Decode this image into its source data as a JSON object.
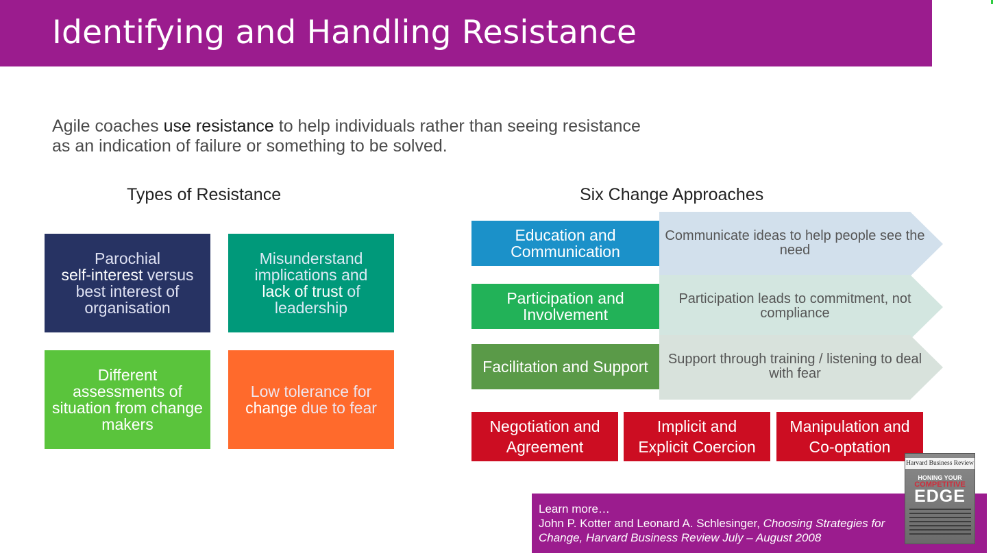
{
  "header": {
    "title": "Identifying and Handling Resistance"
  },
  "intro": {
    "part1": "Agile coaches ",
    "highlight": "use resistance",
    "part2": " to help individuals rather than seeing resistance as an indication of failure or something to be solved."
  },
  "types": {
    "heading": "Types of Resistance",
    "box1": {
      "a": "Parochial",
      "b": "self-interest",
      "c": " versus best interest of organisation"
    },
    "box2": {
      "a": "Misunderstand",
      "b": "implications and",
      "c": "lack of trust",
      "d": " of leadership"
    },
    "box3": {
      "a": "Different assessments of situation from change makers"
    },
    "box4": {
      "a": "Low tolerance for ",
      "b": "change",
      "c": " due to fear"
    }
  },
  "approaches": {
    "heading": "Six Change Approaches",
    "rows": [
      {
        "label": "Education and Communication",
        "desc": "Communicate ideas to help people see the need"
      },
      {
        "label": "Participation and Involvement",
        "desc": "Participation leads to commitment, not compliance"
      },
      {
        "label": "Facilitation and Support",
        "desc": "Support through training / listening to deal with fear"
      }
    ],
    "red": [
      {
        "line1": "Negotiation and",
        "line2": "Agreement"
      },
      {
        "line1": "Implicit and",
        "line2": "Explicit Coercion"
      },
      {
        "line1": "Manipulation and",
        "line2": "Co-optation"
      }
    ]
  },
  "learn": {
    "title": "Learn more…",
    "authors": "John P. Kotter and Leonard A. Schlesinger, ",
    "work": "Choosing Strategies for Change, Harvard Business Review July – August 2008"
  },
  "cover": {
    "masthead": "Harvard Business Review",
    "line1": "HONING YOUR",
    "line2": "COMPETITIVE",
    "line3": "EDGE"
  },
  "colors": {
    "brand_purple": "#9b1c8e",
    "navy": "#273363",
    "teal": "#00997a",
    "green": "#5ac43c",
    "orange": "#ff6a2c",
    "blue": "#1b91c9",
    "green2": "#22b258",
    "olive_green": "#5a9a48",
    "red": "#cc0d22"
  }
}
